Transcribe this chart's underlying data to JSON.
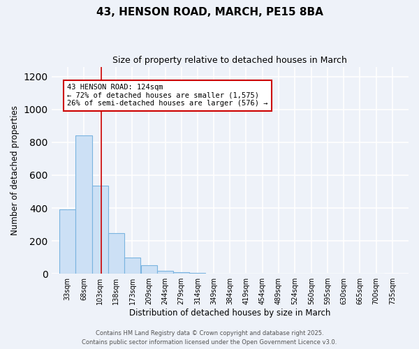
{
  "title": "43, HENSON ROAD, MARCH, PE15 8BA",
  "subtitle": "Size of property relative to detached houses in March",
  "xlabel": "Distribution of detached houses by size in March",
  "ylabel": "Number of detached properties",
  "bar_color": "#cce0f5",
  "bar_edge_color": "#7ab4e0",
  "bar_heights": [
    390,
    840,
    535,
    248,
    97,
    52,
    18,
    8,
    4,
    2,
    1,
    0,
    0,
    0,
    0,
    0,
    0,
    0,
    0,
    0
  ],
  "bin_labels": [
    "33sqm",
    "68sqm",
    "103sqm",
    "138sqm",
    "173sqm",
    "209sqm",
    "244sqm",
    "279sqm",
    "314sqm",
    "349sqm",
    "384sqm",
    "419sqm",
    "454sqm",
    "489sqm",
    "524sqm",
    "560sqm",
    "595sqm",
    "630sqm",
    "665sqm",
    "700sqm",
    "735sqm"
  ],
  "bin_edges": [
    33,
    68,
    103,
    138,
    173,
    209,
    244,
    279,
    314,
    349,
    384,
    419,
    454,
    489,
    524,
    560,
    595,
    630,
    665,
    700,
    735
  ],
  "vline_x": 124,
  "vline_color": "#cc0000",
  "annotation_text": "43 HENSON ROAD: 124sqm\n← 72% of detached houses are smaller (1,575)\n26% of semi-detached houses are larger (576) →",
  "annotation_box_color": "#ffffff",
  "annotation_box_edge_color": "#cc0000",
  "ylim": [
    0,
    1260
  ],
  "yticks": [
    0,
    200,
    400,
    600,
    800,
    1000,
    1200
  ],
  "footer1": "Contains HM Land Registry data © Crown copyright and database right 2025.",
  "footer2": "Contains public sector information licensed under the Open Government Licence v3.0.",
  "background_color": "#eef2f9",
  "grid_color": "#ffffff"
}
